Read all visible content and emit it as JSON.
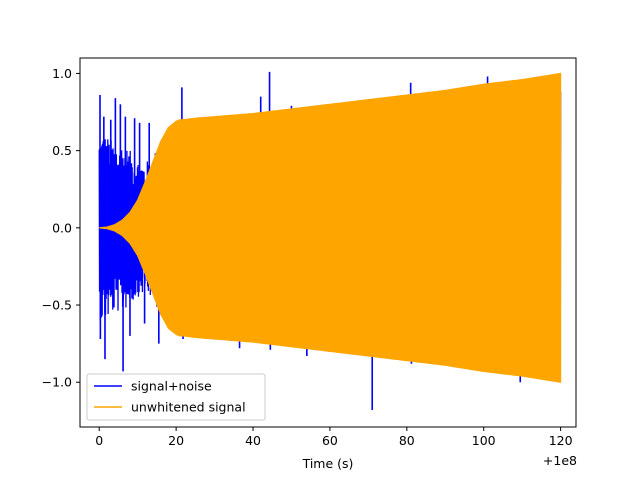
{
  "chart_data": {
    "type": "line",
    "title": "",
    "xlabel": "Time (s)",
    "ylabel": "",
    "x_offset_text": "+1e8",
    "xlim": [
      -5,
      124
    ],
    "ylim": [
      -1.29,
      1.1
    ],
    "x_ticks": [
      0,
      20,
      40,
      60,
      80,
      100,
      120
    ],
    "x_tick_labels": [
      "0",
      "20",
      "40",
      "60",
      "80",
      "100",
      "120"
    ],
    "y_ticks": [
      -1.0,
      -0.5,
      0.0,
      0.5,
      1.0
    ],
    "y_tick_labels": [
      "−1.0",
      "−0.5",
      "0.0",
      "0.5",
      "1.0"
    ],
    "grid": false,
    "legend_position": "lower-left",
    "series": [
      {
        "name": "signal+noise",
        "color": "#0000ff",
        "envelope_x": [
          0,
          1,
          2,
          4,
          6,
          8,
          10,
          12,
          14,
          16,
          18,
          20,
          30,
          40,
          50,
          60,
          70,
          80,
          90,
          100,
          110,
          120
        ],
        "envelope_y": [
          0.6,
          0.62,
          0.6,
          0.55,
          0.55,
          0.5,
          0.45,
          0.42,
          0.48,
          0.55,
          0.62,
          0.68,
          0.7,
          0.74,
          0.77,
          0.8,
          0.83,
          0.86,
          0.89,
          0.93,
          0.96,
          0.98
        ],
        "spikes": [
          {
            "x": 0.2,
            "y": 0.86
          },
          {
            "x": 0.3,
            "y": -0.72
          },
          {
            "x": 1.2,
            "y": 0.72
          },
          {
            "x": 1.5,
            "y": -0.85
          },
          {
            "x": 3.0,
            "y": 0.7
          },
          {
            "x": 4.2,
            "y": 0.84
          },
          {
            "x": 5.5,
            "y": 0.8
          },
          {
            "x": 6.2,
            "y": -0.93
          },
          {
            "x": 6.8,
            "y": 0.72
          },
          {
            "x": 8.0,
            "y": -0.7
          },
          {
            "x": 9.2,
            "y": 0.71
          },
          {
            "x": 10.5,
            "y": 0.68
          },
          {
            "x": 11.8,
            "y": -0.62
          },
          {
            "x": 13.0,
            "y": 0.68
          },
          {
            "x": 15.5,
            "y": -0.75
          },
          {
            "x": 21.5,
            "y": 0.91
          },
          {
            "x": 21.8,
            "y": -0.72
          },
          {
            "x": 36.5,
            "y": -0.78
          },
          {
            "x": 42.0,
            "y": 0.85
          },
          {
            "x": 44.3,
            "y": 1.01
          },
          {
            "x": 44.5,
            "y": -0.79
          },
          {
            "x": 50.0,
            "y": 0.79
          },
          {
            "x": 54.0,
            "y": -0.83
          },
          {
            "x": 64.0,
            "y": 0.74
          },
          {
            "x": 71.0,
            "y": -1.18
          },
          {
            "x": 72.5,
            "y": 0.83
          },
          {
            "x": 74.0,
            "y": 0.83
          },
          {
            "x": 81.0,
            "y": 0.94
          },
          {
            "x": 81.2,
            "y": -0.88
          },
          {
            "x": 89.5,
            "y": -0.89
          },
          {
            "x": 93.5,
            "y": 0.89
          },
          {
            "x": 101.0,
            "y": 0.98
          },
          {
            "x": 109.5,
            "y": -1.0
          }
        ]
      },
      {
        "name": "unwhitened signal",
        "color": "#ffa500",
        "envelope_x": [
          0,
          2,
          4,
          6,
          8,
          10,
          12,
          14,
          16,
          18,
          20,
          21,
          22,
          25,
          30,
          40,
          50,
          60,
          70,
          80,
          90,
          100,
          110,
          120
        ],
        "envelope_y": [
          0.0,
          0.005,
          0.02,
          0.05,
          0.1,
          0.18,
          0.3,
          0.43,
          0.56,
          0.65,
          0.69,
          0.7,
          0.7,
          0.71,
          0.72,
          0.74,
          0.77,
          0.8,
          0.83,
          0.86,
          0.89,
          0.93,
          0.96,
          1.0
        ]
      }
    ]
  }
}
